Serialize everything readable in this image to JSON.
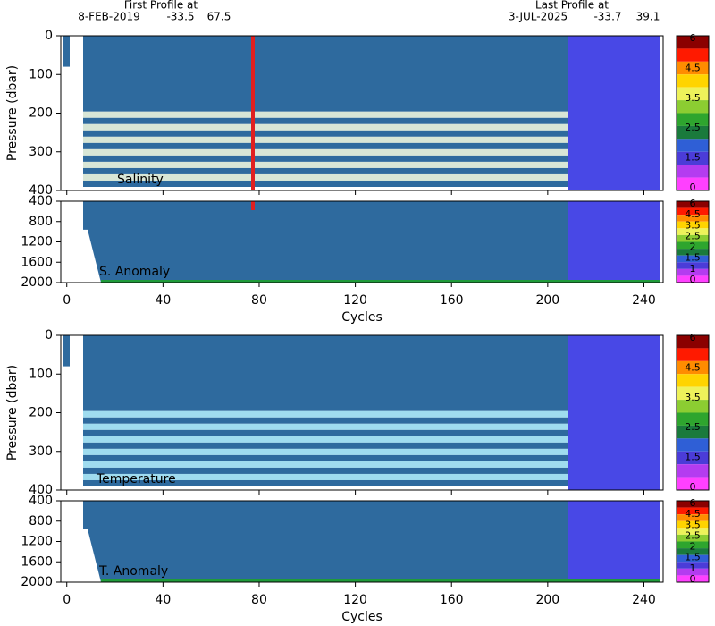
{
  "header": {
    "first_label": "First Profile at",
    "first_date": "8-FEB-2019",
    "first_lat": -33.5,
    "first_lon": 67.5,
    "last_label": "Last Profile at",
    "last_date": "3-JUL-2025",
    "last_lat": -33.7,
    "last_lon": 39.1
  },
  "chart_data": [
    {
      "type": "heatmap",
      "annotation": "Salinity",
      "y_label": "Pressure (dbar)",
      "xlim": [
        -2.5,
        248
      ],
      "xticks": [
        0,
        40,
        80,
        120,
        160,
        200,
        240
      ],
      "ylim": [
        0,
        400
      ],
      "yticks": [
        0,
        100,
        200,
        300,
        400
      ],
      "colorbar_ticks": [
        6,
        4.5,
        3.5,
        2.5,
        1.5,
        0
      ],
      "colorbar_colors": [
        "#8b0000",
        "#ff1a00",
        "#ff8c00",
        "#ffd400",
        "#eef25a",
        "#8ccd32",
        "#2ea52e",
        "#1a7a3c",
        "#2f5fd6",
        "#4b3cd8",
        "#b43cf0",
        "#ff40ff"
      ]
    },
    {
      "type": "heatmap",
      "annotation": "S. Anomaly",
      "x_label": "Cycles",
      "xlim": [
        -2.5,
        248
      ],
      "xticks": [
        0,
        40,
        80,
        120,
        160,
        200,
        240
      ],
      "ylim": [
        400,
        2000
      ],
      "yticks": [
        400,
        800,
        1200,
        1600,
        2000
      ],
      "colorbar_ticks": [
        6,
        4.5,
        3.5,
        2.5,
        2,
        1.5,
        1,
        0
      ],
      "colorbar_colors": [
        "#8b0000",
        "#ff1a00",
        "#ff8c00",
        "#ffd400",
        "#eef25a",
        "#8ccd32",
        "#2ea52e",
        "#1a7a3c",
        "#2f5fd6",
        "#4b3cd8",
        "#b43cf0",
        "#ff40ff"
      ]
    },
    {
      "type": "heatmap",
      "annotation": "Temperature",
      "y_label": "Pressure (dbar)",
      "xlim": [
        -2.5,
        248
      ],
      "xticks": [
        0,
        40,
        80,
        120,
        160,
        200,
        240
      ],
      "ylim": [
        0,
        400
      ],
      "yticks": [
        0,
        100,
        200,
        300,
        400
      ],
      "colorbar_ticks": [
        6,
        4.5,
        3.5,
        2.5,
        1.5,
        0
      ],
      "colorbar_colors": [
        "#8b0000",
        "#ff1a00",
        "#ff8c00",
        "#ffd400",
        "#eef25a",
        "#8ccd32",
        "#2ea52e",
        "#1a7a3c",
        "#2f5fd6",
        "#4b3cd8",
        "#b43cf0",
        "#ff40ff"
      ]
    },
    {
      "type": "heatmap",
      "annotation": "T. Anomaly",
      "x_label": "Cycles",
      "xlim": [
        -2.5,
        248
      ],
      "xticks": [
        0,
        40,
        80,
        120,
        160,
        200,
        240
      ],
      "ylim": [
        400,
        2000
      ],
      "yticks": [
        400,
        800,
        1200,
        1600,
        2000
      ],
      "colorbar_ticks": [
        6,
        4.5,
        3.5,
        2.5,
        2,
        1.5,
        1,
        0
      ],
      "colorbar_colors": [
        "#8b0000",
        "#ff1a00",
        "#ff8c00",
        "#ffd400",
        "#eef25a",
        "#8ccd32",
        "#2ea52e",
        "#1a7a3c",
        "#2f5fd6",
        "#4b3cd8",
        "#b43cf0",
        "#ff40ff"
      ]
    }
  ]
}
